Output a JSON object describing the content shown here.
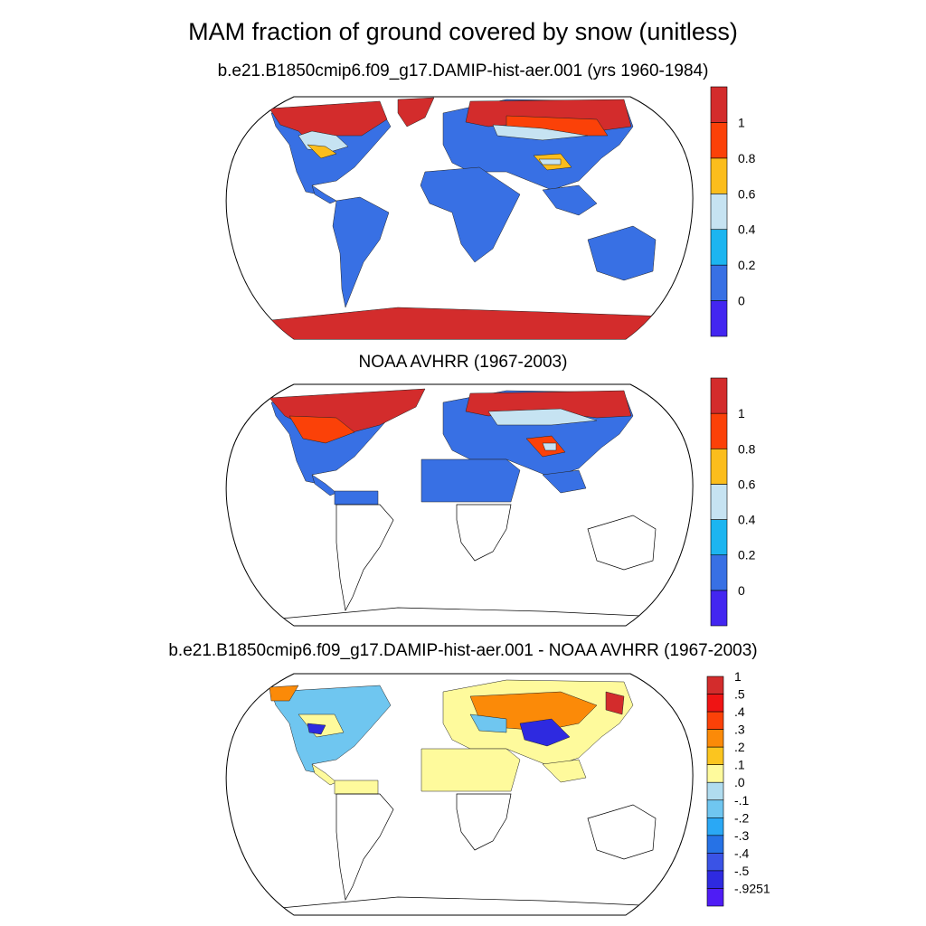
{
  "figure": {
    "title": "MAM fraction of ground covered by snow (unitless)"
  },
  "panels": [
    {
      "id": "model",
      "title": "b.e21.B1850cmip6.f09_g17.DAMIP-hist-aer.001 (yrs 1960-1984)",
      "colorbar": {
        "colors": [
          "#4326f0",
          "#3870e4",
          "#1cb5f0",
          "#c6e3f2",
          "#fbbd1c",
          "#fb4108",
          "#d32c2c"
        ],
        "labels": [
          "0",
          "0.2",
          "0.4",
          "0.6",
          "0.8",
          "1"
        ]
      }
    },
    {
      "id": "obs",
      "title": "NOAA AVHRR (1967-2003)",
      "colorbar": {
        "colors": [
          "#4326f0",
          "#3870e4",
          "#1cb5f0",
          "#c6e3f2",
          "#fbbd1c",
          "#fb4108",
          "#d32c2c"
        ],
        "labels": [
          "0",
          "0.2",
          "0.4",
          "0.6",
          "0.8",
          "1"
        ]
      }
    },
    {
      "id": "diff",
      "title": "b.e21.B1850cmip6.f09_g17.DAMIP-hist-aer.001 - NOAA AVHRR (1967-2003)",
      "colorbar": {
        "colors": [
          "#d32c2c",
          "#ef1414",
          "#fb4108",
          "#fb8a08",
          "#fbc51f",
          "#fefa9c",
          "#b0dcef",
          "#6fc6f0",
          "#2aa8f5",
          "#2672e6",
          "#3a53e6",
          "#2e2ae0",
          "#4f1cf5"
        ],
        "labels": [
          "1",
          ".5",
          ".4",
          ".3",
          ".2",
          ".1",
          ".0",
          "-.1",
          "-.2",
          "-.3",
          "-.4",
          "-.5",
          "-.9251"
        ]
      }
    }
  ],
  "palette": {
    "land_low": "#3870e4",
    "snow_light": "#c6e3f2",
    "snow_mid": "#fbbd1c",
    "snow_high": "#fb4108",
    "snow_full": "#d32c2c",
    "diff_neutral": "#fefa9c",
    "diff_neg": "#6fc6f0",
    "diff_neg_strong": "#2e2ae0",
    "diff_pos": "#fb8a08"
  }
}
